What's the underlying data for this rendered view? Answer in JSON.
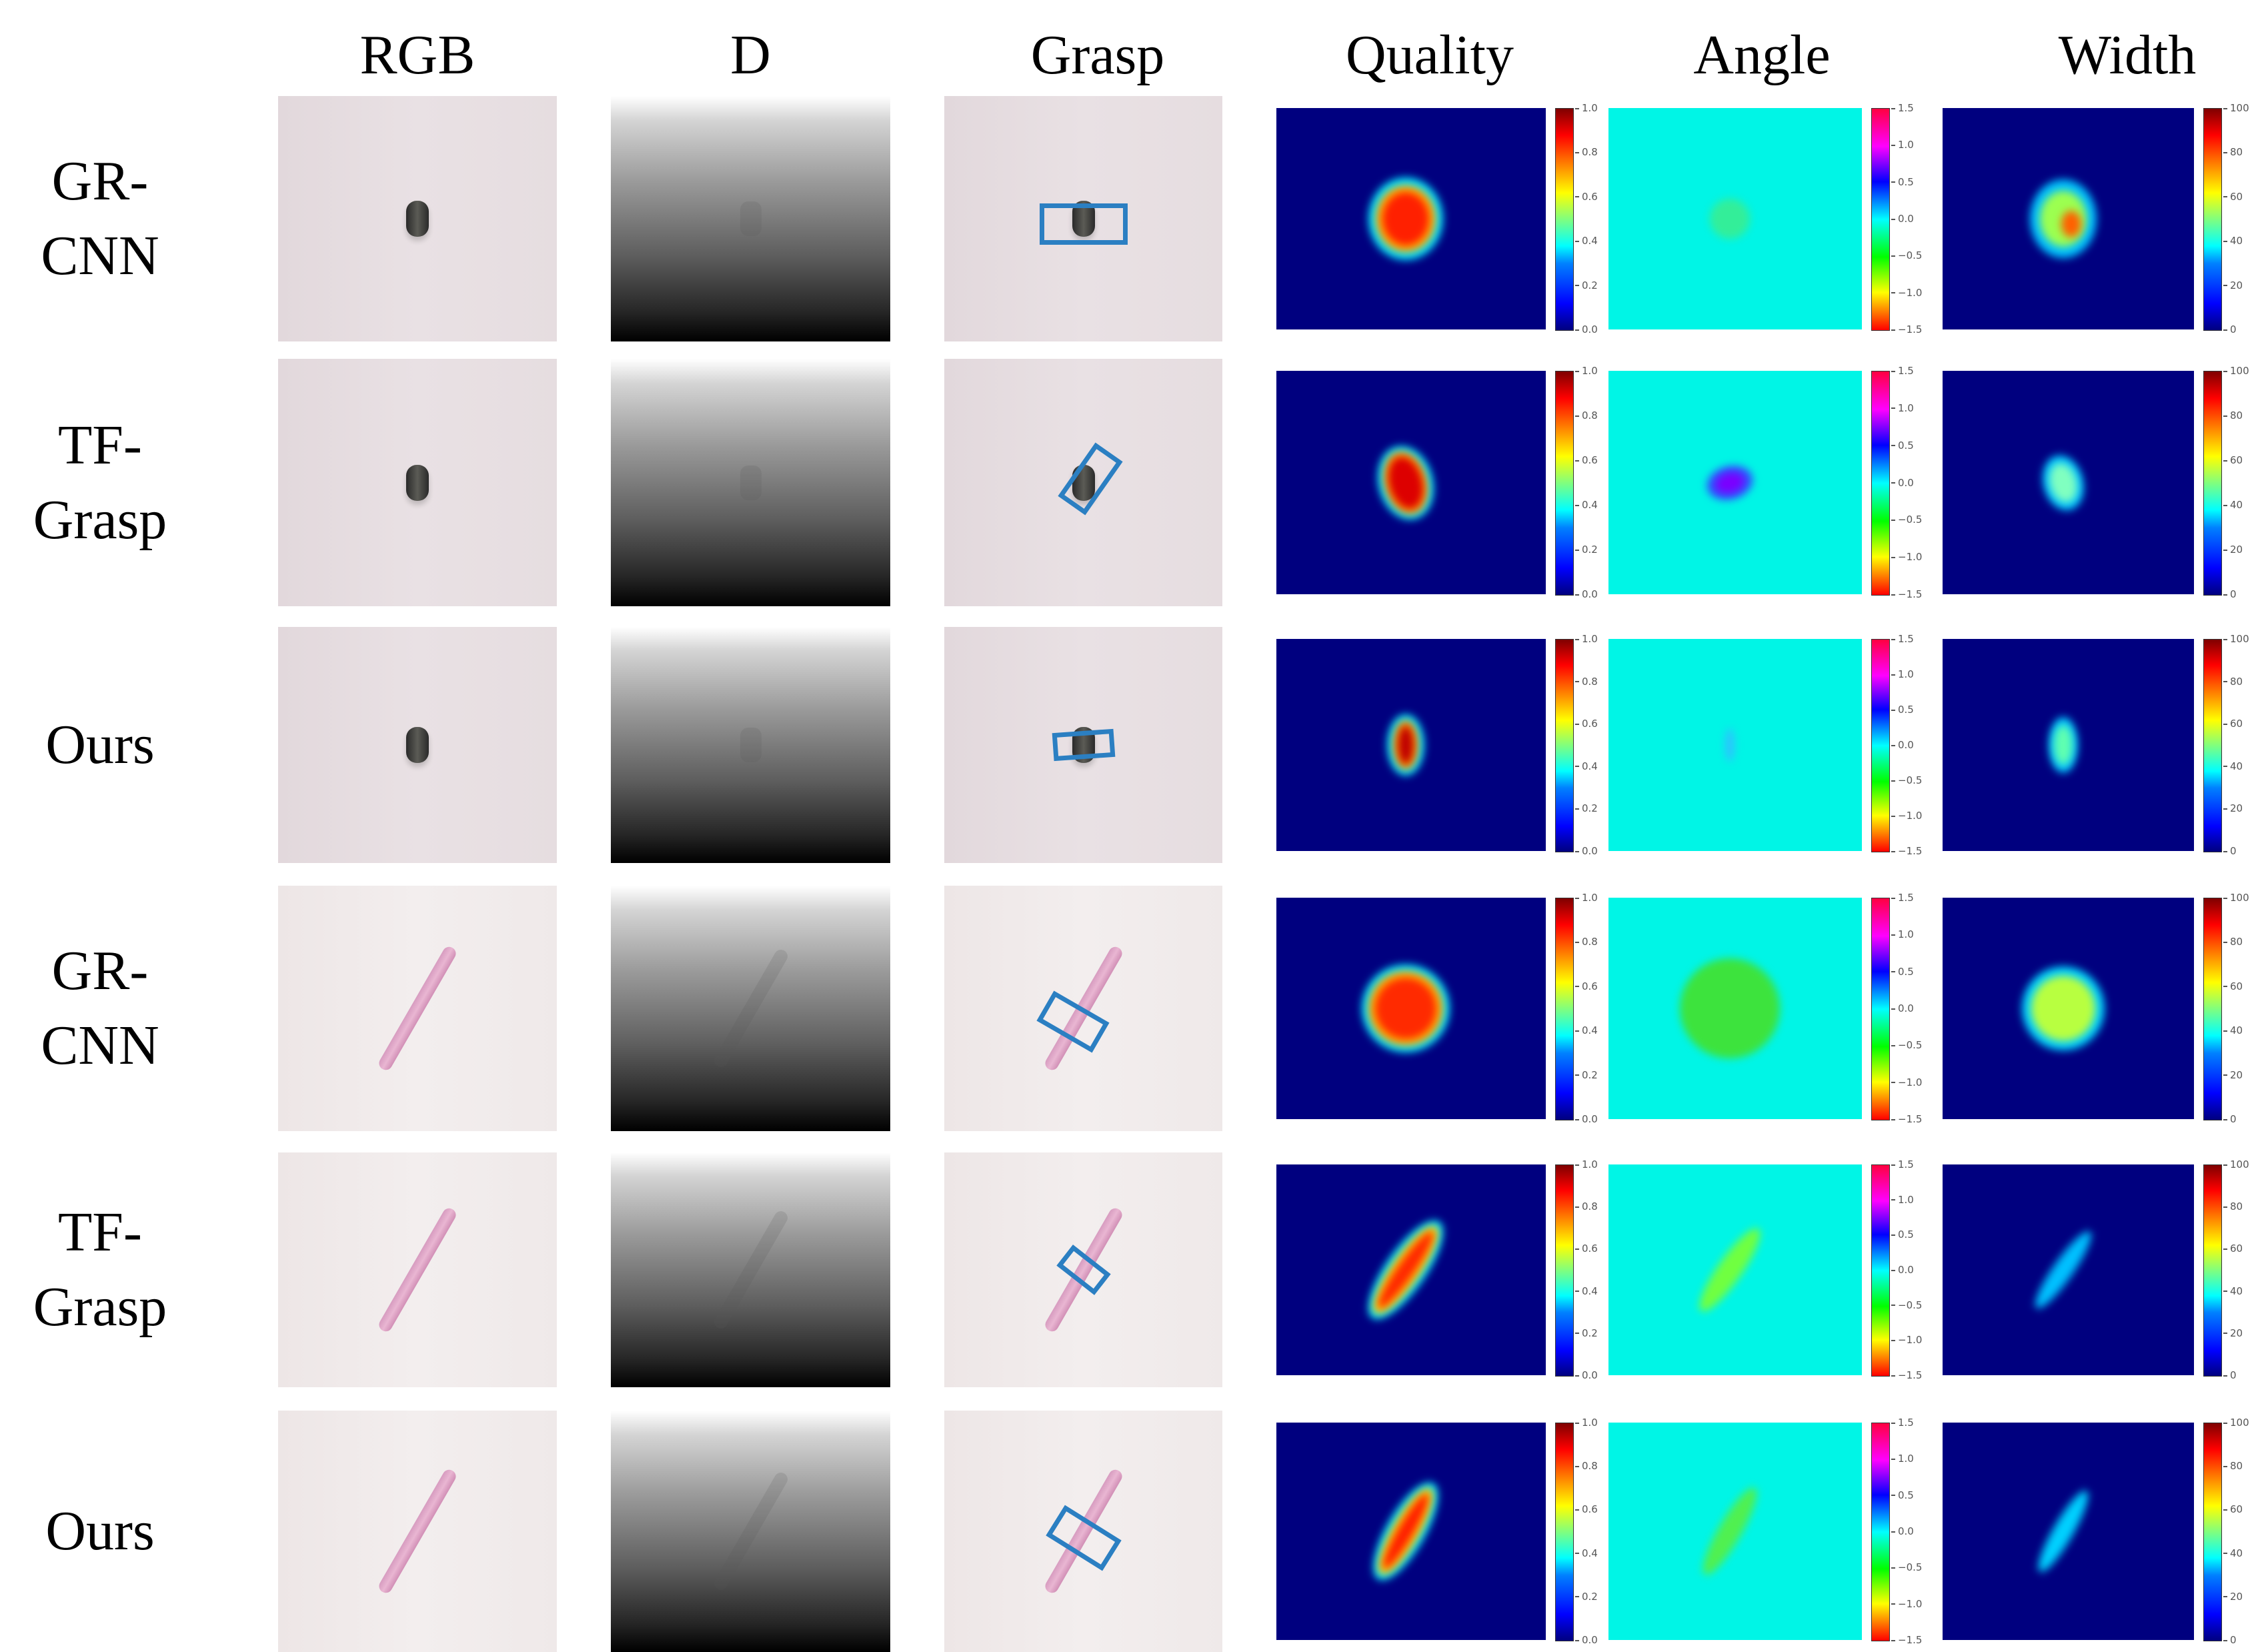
{
  "figure": {
    "column_headers": [
      "RGB",
      "D",
      "Grasp",
      "Quality",
      "Angle",
      "Width"
    ],
    "rows": [
      {
        "label_line1": "GR-",
        "label_line2": "CNN",
        "object": "cylinder"
      },
      {
        "label_line1": "TF-",
        "label_line2": "Grasp",
        "object": "cylinder"
      },
      {
        "label_line1": "Ours",
        "label_line2": "",
        "object": "cylinder"
      },
      {
        "label_line1": "GR-",
        "label_line2": "CNN",
        "object": "pen"
      },
      {
        "label_line1": "TF-",
        "label_line2": "Grasp",
        "object": "pen"
      },
      {
        "label_line1": "Ours",
        "label_line2": "",
        "object": "pen"
      }
    ],
    "colorbars": {
      "quality": {
        "colormap": "jet",
        "min": 0.0,
        "max": 1.0,
        "ticks": [
          "1.0",
          "0.8",
          "0.6",
          "0.4",
          "0.2",
          "0.0"
        ]
      },
      "angle": {
        "colormap": "hsv",
        "min": -1.5,
        "max": 1.5,
        "ticks": [
          "1.5",
          "1.0",
          "0.5",
          "0.0",
          "−0.5",
          "−1.0",
          "−1.5"
        ]
      },
      "width": {
        "colormap": "jet",
        "min": 0,
        "max": 100,
        "ticks": [
          "100",
          "80",
          "60",
          "40",
          "20",
          "0"
        ]
      }
    },
    "colors": {
      "grasp_box": "#2b7fc2",
      "heatmap_background": "#00007f",
      "angle_background": "#00f5e6"
    }
  }
}
